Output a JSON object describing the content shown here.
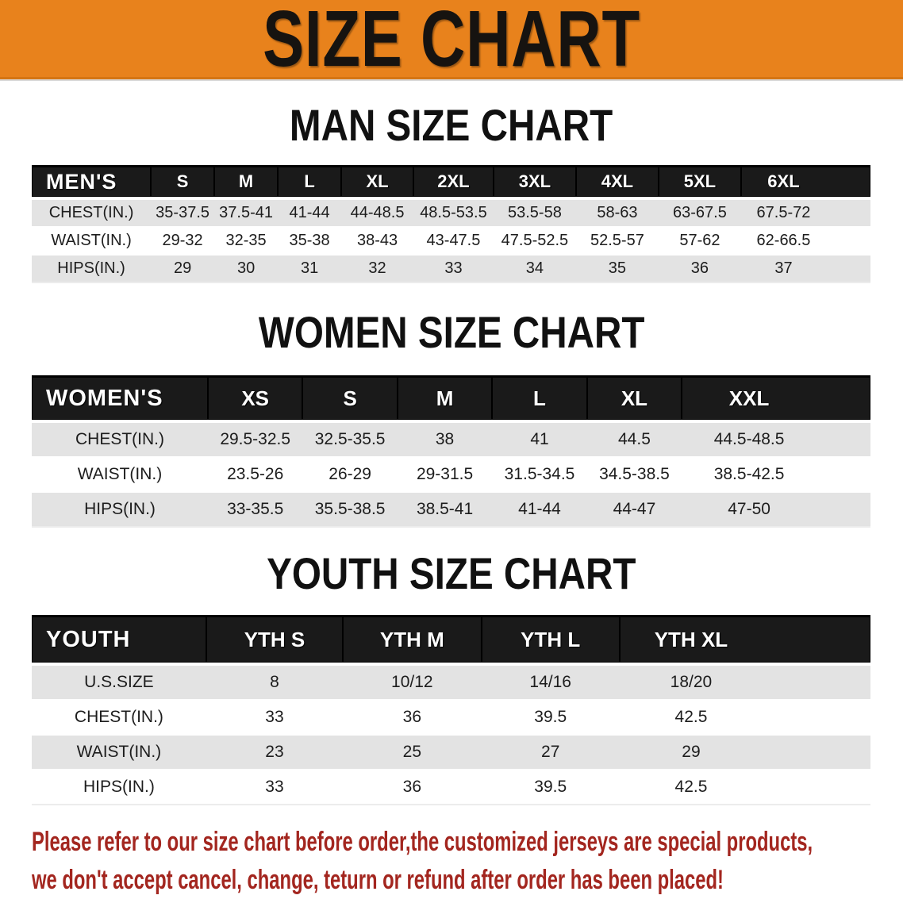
{
  "banner": {
    "title": "SIZE CHART"
  },
  "colors": {
    "banner_bg": "#E8821C",
    "header_bar_bg": "#1A1A1A",
    "header_bar_text": "#FFFFFF",
    "stripe_row_bg": "#E3E3E3",
    "disclaimer_text": "#A3261F",
    "title_text": "#111111"
  },
  "sections": [
    {
      "title": "MAN SIZE CHART",
      "group_label": "MEN'S",
      "columns": [
        "S",
        "M",
        "L",
        "XL",
        "2XL",
        "3XL",
        "4XL",
        "5XL",
        "6XL"
      ],
      "rows": [
        {
          "label": "CHEST(IN.)",
          "values": [
            "35-37.5",
            "37.5-41",
            "41-44",
            "44-48.5",
            "48.5-53.5",
            "53.5-58",
            "58-63",
            "63-67.5",
            "67.5-72"
          ]
        },
        {
          "label": "WAIST(IN.)",
          "values": [
            "29-32",
            "32-35",
            "35-38",
            "38-43",
            "43-47.5",
            "47.5-52.5",
            "52.5-57",
            "57-62",
            "62-66.5"
          ]
        },
        {
          "label": "HIPS(IN.)",
          "values": [
            "29",
            "30",
            "31",
            "32",
            "33",
            "34",
            "35",
            "36",
            "37"
          ]
        }
      ]
    },
    {
      "title": "WOMEN SIZE CHART",
      "group_label": "WOMEN'S",
      "columns": [
        "XS",
        "S",
        "M",
        "L",
        "XL",
        "XXL"
      ],
      "rows": [
        {
          "label": "CHEST(IN.)",
          "values": [
            "29.5-32.5",
            "32.5-35.5",
            "38",
            "41",
            "44.5",
            "44.5-48.5"
          ]
        },
        {
          "label": "WAIST(IN.)",
          "values": [
            "23.5-26",
            "26-29",
            "29-31.5",
            "31.5-34.5",
            "34.5-38.5",
            "38.5-42.5"
          ]
        },
        {
          "label": "HIPS(IN.)",
          "values": [
            "33-35.5",
            "35.5-38.5",
            "38.5-41",
            "41-44",
            "44-47",
            "47-50"
          ]
        }
      ]
    },
    {
      "title": "YOUTH SIZE CHART",
      "group_label": "YOUTH",
      "columns": [
        "YTH S",
        "YTH M",
        "YTH L",
        "YTH XL"
      ],
      "rows": [
        {
          "label": "U.S.SIZE",
          "values": [
            "8",
            "10/12",
            "14/16",
            "18/20"
          ]
        },
        {
          "label": "CHEST(IN.)",
          "values": [
            "33",
            "36",
            "39.5",
            "42.5"
          ]
        },
        {
          "label": "WAIST(IN.)",
          "values": [
            "23",
            "25",
            "27",
            "29"
          ]
        },
        {
          "label": "HIPS(IN.)",
          "values": [
            "33",
            "36",
            "39.5",
            "42.5"
          ]
        }
      ]
    }
  ],
  "disclaimer": {
    "line1": "Please refer to our size chart before order,the customized jerseys are special products,",
    "line2": "we don't accept cancel, change, teturn or refund after order has been placed!"
  }
}
